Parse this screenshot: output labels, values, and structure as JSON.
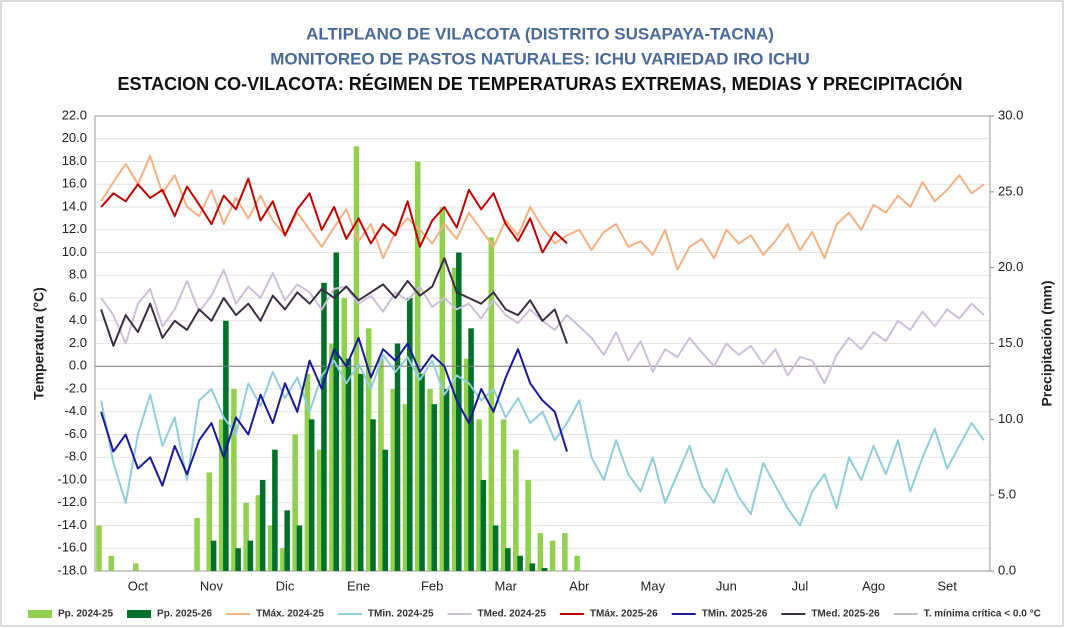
{
  "chart_data": {
    "type": "combo",
    "title_lines": [
      {
        "text": "ALTIPLANO DE VILACOTA (DISTRITO SUSAPAYA-TACNA)",
        "color": "#4a6a9a"
      },
      {
        "text": "MONITOREO DE PASTOS NATURALES: ICHU VARIEDAD IRO ICHU",
        "color": "#4a6a9a"
      },
      {
        "text": "ESTACION CO-VILACOTA: RÉGIMEN DE TEMPERATURAS EXTREMAS, MEDIAS Y PRECIPITACIÓN",
        "color": "#111111"
      }
    ],
    "y_label": "Temperatura (°C)",
    "y2_label": "Precipitación (mm)",
    "categories": [
      null,
      null,
      null,
      "Oct",
      null,
      null,
      null,
      null,
      null,
      "Nov",
      null,
      null,
      null,
      null,
      null,
      "Dic",
      null,
      null,
      null,
      null,
      null,
      "Ene",
      null,
      null,
      null,
      null,
      null,
      "Feb",
      null,
      null,
      null,
      null,
      null,
      "Mar",
      null,
      null,
      null,
      null,
      null,
      "Abr",
      null,
      null,
      null,
      null,
      null,
      "May",
      null,
      null,
      null,
      null,
      null,
      "Jun",
      null,
      null,
      null,
      null,
      null,
      "Jul",
      null,
      null,
      null,
      null,
      null,
      "Ago",
      null,
      null,
      null,
      null,
      null,
      "Set",
      null,
      null,
      null
    ],
    "ylim": [
      -18,
      22
    ],
    "yticks": [
      {
        "value": -18,
        "label": "-18.0"
      },
      {
        "value": -16,
        "label": "-16.0"
      },
      {
        "value": -14,
        "label": "-14.0"
      },
      {
        "value": -12,
        "label": "-12.0"
      },
      {
        "value": -10,
        "label": "-10.0"
      },
      {
        "value": -8,
        "label": "-8.0"
      },
      {
        "value": -6,
        "label": "-6.0"
      },
      {
        "value": -4,
        "label": "-4.0"
      },
      {
        "value": -2,
        "label": "-2.0"
      },
      {
        "value": 0,
        "label": "0.0"
      },
      {
        "value": 2,
        "label": "2.0"
      },
      {
        "value": 4,
        "label": "4.0"
      },
      {
        "value": 6,
        "label": "6.0"
      },
      {
        "value": 8,
        "label": "8.0"
      },
      {
        "value": 10,
        "label": "10.0"
      },
      {
        "value": 12,
        "label": "12.0"
      },
      {
        "value": 14,
        "label": "14.0"
      },
      {
        "value": 16,
        "label": "16.0"
      },
      {
        "value": 18,
        "label": "18.0"
      },
      {
        "value": 20,
        "label": "20.0"
      },
      {
        "value": 22,
        "label": "22.0"
      }
    ],
    "y2lim": [
      0,
      30
    ],
    "y2ticks": [
      {
        "value": 0,
        "label": "0.0"
      },
      {
        "value": 5,
        "label": "5.0"
      },
      {
        "value": 10,
        "label": "10.0"
      },
      {
        "value": 15,
        "label": "15.0"
      },
      {
        "value": 20,
        "label": "20.0"
      },
      {
        "value": 25,
        "label": "25.0"
      },
      {
        "value": 30,
        "label": "30.0"
      }
    ],
    "grid": true,
    "legend": "bottom",
    "series": [
      {
        "name": "Pp. 2024-25",
        "type": "bar",
        "axis": "y2",
        "color": "#92d050",
        "values": [
          3.0,
          1.0,
          0.0,
          0.5,
          0.0,
          0.0,
          0.0,
          0.0,
          3.5,
          6.5,
          10.0,
          12.0,
          4.5,
          5.0,
          3.0,
          1.5,
          9.0,
          13.0,
          8.0,
          15.0,
          18.0,
          28.0,
          16.0,
          14.0,
          12.0,
          11.0,
          27.0,
          12.0,
          24.0,
          20.0,
          14.0,
          10.0,
          22.0,
          10.0,
          8.0,
          6.0,
          2.5,
          2.0,
          2.5,
          1.0,
          0,
          0,
          0,
          0,
          0,
          0,
          0,
          0,
          0,
          0,
          0,
          0,
          0,
          0,
          0,
          0,
          0,
          0,
          0,
          0,
          0,
          0,
          0,
          0,
          0,
          0,
          0,
          0,
          0,
          0,
          0,
          0,
          0
        ]
      },
      {
        "name": "Pp. 2025-26",
        "type": "bar",
        "axis": "y2",
        "color": "#00702a",
        "values": [
          0,
          0,
          0,
          0,
          0,
          0,
          0,
          0,
          0,
          2.0,
          16.5,
          1.5,
          2.0,
          6.0,
          8.0,
          4.0,
          3.0,
          10.0,
          19.0,
          21.0,
          14.0,
          13.0,
          10.0,
          8.0,
          15.0,
          18.0,
          13.0,
          11.0,
          12.0,
          21.0,
          16.0,
          6.0,
          3.0,
          1.5,
          1.0,
          0.5,
          0.2,
          0,
          0,
          null,
          null,
          null,
          null,
          null,
          null,
          null,
          null,
          null,
          null,
          null,
          null,
          null,
          null,
          null,
          null,
          null,
          null,
          null,
          null,
          null,
          null,
          null,
          null,
          null,
          null,
          null,
          null,
          null,
          null,
          null,
          null,
          null,
          null
        ]
      },
      {
        "name": "TMáx. 2024-25",
        "type": "line",
        "color": "#f4b183",
        "values": [
          14.5,
          16.2,
          17.8,
          16.0,
          18.5,
          15.2,
          16.8,
          14.0,
          13.2,
          15.5,
          12.5,
          14.8,
          13.0,
          15.0,
          12.8,
          11.5,
          13.5,
          12.0,
          10.5,
          12.2,
          13.8,
          11.0,
          12.5,
          9.5,
          11.8,
          13.0,
          12.0,
          10.8,
          12.5,
          11.2,
          13.5,
          12.0,
          10.5,
          12.8,
          11.5,
          14.0,
          12.2,
          10.8,
          11.5,
          12.0,
          10.2,
          11.8,
          12.5,
          10.5,
          11.0,
          9.8,
          12.0,
          8.5,
          10.5,
          11.2,
          9.5,
          12.0,
          10.8,
          11.5,
          9.8,
          11.0,
          12.5,
          10.2,
          11.8,
          9.5,
          12.5,
          13.5,
          12.0,
          14.2,
          13.5,
          15.0,
          14.0,
          16.2,
          14.5,
          15.5,
          16.8,
          15.2,
          16.0
        ]
      },
      {
        "name": "TMin. 2024-25",
        "type": "line",
        "color": "#92cddc",
        "values": [
          -3.0,
          -8.5,
          -12.0,
          -6.0,
          -2.5,
          -7.0,
          -4.5,
          -10.0,
          -3.0,
          -2.0,
          -4.5,
          -6.0,
          -1.5,
          -3.5,
          -0.5,
          -2.8,
          -1.0,
          -4.0,
          -0.8,
          0.5,
          -1.5,
          0.2,
          -2.0,
          1.0,
          -0.5,
          0.8,
          -1.2,
          0.5,
          -2.5,
          -0.8,
          -1.5,
          -3.0,
          -2.0,
          -4.5,
          -2.8,
          -5.0,
          -4.0,
          -6.5,
          -5.0,
          -3.0,
          -8.0,
          -10.0,
          -6.5,
          -9.5,
          -11.0,
          -8.0,
          -12.0,
          -9.5,
          -7.0,
          -10.5,
          -12.0,
          -9.0,
          -11.5,
          -13.0,
          -8.5,
          -10.5,
          -12.5,
          -14.0,
          -11.0,
          -9.5,
          -12.5,
          -8.0,
          -10.0,
          -7.0,
          -9.5,
          -6.5,
          -11.0,
          -8.0,
          -5.5,
          -9.0,
          -7.0,
          -5.0,
          -6.5
        ]
      },
      {
        "name": "TMed. 2024-25",
        "type": "line",
        "color": "#ccc0da",
        "values": [
          6.0,
          4.5,
          2.0,
          5.5,
          6.8,
          3.5,
          5.0,
          7.5,
          4.8,
          6.2,
          8.5,
          5.5,
          7.0,
          6.0,
          8.2,
          5.8,
          7.2,
          6.5,
          5.0,
          6.8,
          7.0,
          5.5,
          6.2,
          4.8,
          6.5,
          5.8,
          7.0,
          5.2,
          6.0,
          5.0,
          5.5,
          4.2,
          5.8,
          4.5,
          3.8,
          5.0,
          4.0,
          3.2,
          4.5,
          3.5,
          2.5,
          1.0,
          3.0,
          0.5,
          2.2,
          -0.5,
          1.5,
          0.8,
          2.5,
          1.2,
          0.0,
          2.0,
          1.0,
          1.8,
          0.2,
          1.5,
          -0.8,
          0.8,
          0.5,
          -1.5,
          1.0,
          2.5,
          1.5,
          3.0,
          2.2,
          4.0,
          3.2,
          4.8,
          3.5,
          5.0,
          4.2,
          5.5,
          4.5
        ]
      },
      {
        "name": "TMáx. 2025-26",
        "type": "line",
        "color": "#c00000",
        "values": [
          14.0,
          15.2,
          14.5,
          16.0,
          14.8,
          15.5,
          13.2,
          15.8,
          14.2,
          12.5,
          15.0,
          13.8,
          16.5,
          12.8,
          14.5,
          11.5,
          13.8,
          15.2,
          12.0,
          14.0,
          11.2,
          13.0,
          10.8,
          12.5,
          11.5,
          14.5,
          10.5,
          12.8,
          14.0,
          12.2,
          15.5,
          13.8,
          15.2,
          12.5,
          11.0,
          13.0,
          10.0,
          11.8,
          10.8,
          null,
          null,
          null,
          null,
          null,
          null,
          null,
          null,
          null,
          null,
          null,
          null,
          null,
          null,
          null,
          null,
          null,
          null,
          null,
          null,
          null,
          null,
          null,
          null,
          null,
          null,
          null,
          null,
          null,
          null,
          null,
          null,
          null,
          null
        ]
      },
      {
        "name": "TMin. 2025-26",
        "type": "line",
        "color": "#1a1a9c",
        "values": [
          -4.0,
          -7.5,
          -6.0,
          -9.0,
          -8.0,
          -10.5,
          -7.0,
          -9.5,
          -6.5,
          -5.0,
          -8.0,
          -4.5,
          -6.0,
          -2.5,
          -5.0,
          -1.5,
          -4.0,
          0.5,
          -2.0,
          1.5,
          0.0,
          2.5,
          -1.0,
          1.5,
          0.5,
          2.0,
          -0.5,
          1.0,
          0.0,
          -3.0,
          -5.0,
          -2.0,
          -4.0,
          -1.0,
          1.5,
          -1.5,
          -3.0,
          -4.0,
          -7.5,
          null,
          null,
          null,
          null,
          null,
          null,
          null,
          null,
          null,
          null,
          null,
          null,
          null,
          null,
          null,
          null,
          null,
          null,
          null,
          null,
          null,
          null,
          null,
          null,
          null,
          null,
          null,
          null,
          null,
          null,
          null,
          null,
          null,
          null
        ]
      },
      {
        "name": "TMed. 2025-26",
        "type": "line",
        "color": "#3b2f45",
        "values": [
          5.0,
          1.8,
          4.5,
          3.0,
          5.5,
          2.5,
          4.0,
          3.2,
          5.0,
          4.0,
          6.0,
          4.5,
          5.5,
          4.0,
          6.2,
          5.0,
          6.5,
          5.5,
          6.8,
          6.0,
          7.0,
          5.8,
          6.5,
          7.2,
          6.0,
          7.5,
          6.2,
          7.0,
          9.5,
          6.5,
          6.0,
          5.5,
          6.5,
          5.0,
          4.5,
          5.8,
          4.0,
          5.0,
          2.0,
          null,
          null,
          null,
          null,
          null,
          null,
          null,
          null,
          null,
          null,
          null,
          null,
          null,
          null,
          null,
          null,
          null,
          null,
          null,
          null,
          null,
          null,
          null,
          null,
          null,
          null,
          null,
          null,
          null,
          null,
          null,
          null,
          null,
          null
        ]
      }
    ],
    "threshold": {
      "name": "T. mínima crítica < 0.0 °C",
      "value": 0,
      "color": "#7f7f7f"
    }
  }
}
